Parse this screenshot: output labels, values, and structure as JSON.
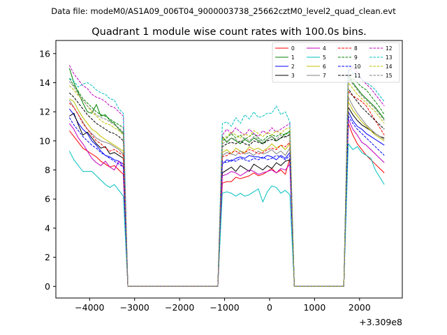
{
  "figure": {
    "suptitle": "Data file: modeM0/AS1A09_006T04_9000003738_25662cztM0_level2_quad_clean.evt"
  },
  "chart_data": {
    "type": "line",
    "title": "Quadrant 1 module wise count rates with 100.0s bins.",
    "xlabel": "",
    "ylabel": "",
    "x_offset_label": "+3.309e8",
    "xlim": [
      -4750,
      2950
    ],
    "ylim": [
      -0.8,
      16.9
    ],
    "xticks": [
      -4000,
      -3000,
      -2000,
      -1000,
      0,
      1000,
      2000
    ],
    "xtick_labels": [
      "−4000",
      "−3000",
      "−2000",
      "−1000",
      "0",
      "1000",
      "2000"
    ],
    "yticks": [
      0,
      2,
      4,
      6,
      8,
      10,
      12,
      14,
      16
    ],
    "ytick_labels": [
      "0",
      "2",
      "4",
      "6",
      "8",
      "10",
      "12",
      "14",
      "16"
    ],
    "grid": false,
    "legend": {
      "placement": "top-right",
      "columns": 4
    },
    "segment_times": [
      [
        -4450,
        -4350,
        -4250,
        -4150,
        -4050,
        -3950,
        -3850,
        -3750,
        -3650,
        -3550,
        -3450,
        -3350,
        -3250
      ],
      [
        -1050,
        -950,
        -850,
        -750,
        -650,
        -550,
        -450,
        -350,
        -250,
        -150,
        -50,
        50,
        150,
        250,
        350,
        450
      ],
      [
        1750,
        1850,
        1950,
        2050,
        2150,
        2250,
        2350,
        2450,
        2550
      ]
    ],
    "zero_times": [
      -3150,
      550
    ],
    "zero_until": [
      -1150,
      1650
    ],
    "series": [
      {
        "name": "0",
        "color": "#ff0000",
        "dash": "solid",
        "segments": [
          [
            10.7,
            10.3,
            9.9,
            9.5,
            9.3,
            9.1,
            8.9,
            8.6,
            8.4,
            8.2,
            8.3,
            8.0,
            7.7
          ],
          [
            7.1,
            7.2,
            7.2,
            7.5,
            7.4,
            7.5,
            7.6,
            7.8,
            7.6,
            7.7,
            7.9,
            8.1,
            7.8,
            8.0,
            7.7,
            8.8
          ],
          [
            11.2,
            10.4,
            9.8,
            9.4,
            9.0,
            8.7,
            8.4,
            8.1,
            7.8
          ]
        ]
      },
      {
        "name": "1",
        "color": "#008000",
        "dash": "solid",
        "segments": [
          [
            15.0,
            14.0,
            13.3,
            12.6,
            12.0,
            11.9,
            12.5,
            11.7,
            11.8,
            11.4,
            11.2,
            10.8,
            10.5
          ],
          [
            10.3,
            9.9,
            10.2,
            10.0,
            9.8,
            10.1,
            9.9,
            10.2,
            10.0,
            9.8,
            10.1,
            10.3,
            10.0,
            10.2,
            10.5,
            10.6
          ],
          [
            14.5,
            14.0,
            13.6,
            13.2,
            12.9,
            12.6,
            12.3,
            11.9,
            11.5
          ]
        ]
      },
      {
        "name": "2",
        "color": "#0000ff",
        "dash": "solid",
        "segments": [
          [
            12.2,
            11.8,
            11.2,
            10.8,
            10.5,
            10.0,
            9.7,
            9.3,
            9.0,
            8.9,
            8.7,
            8.6,
            8.4
          ],
          [
            8.4,
            8.7,
            8.6,
            8.8,
            8.9,
            8.8,
            9.0,
            8.9,
            8.9,
            8.8,
            9.0,
            8.9,
            8.7,
            9.0,
            8.8,
            9.2
          ],
          [
            12.0,
            11.4,
            11.0,
            10.8,
            10.5,
            10.3,
            10.1,
            9.9,
            9.7
          ]
        ]
      },
      {
        "name": "3",
        "color": "#000000",
        "dash": "solid",
        "segments": [
          [
            11.7,
            11.9,
            11.1,
            10.4,
            10.6,
            10.2,
            9.8,
            9.5,
            9.6,
            9.1,
            9.2,
            9.0,
            8.8
          ],
          [
            7.8,
            8.0,
            8.2,
            7.9,
            8.3,
            8.1,
            7.9,
            8.4,
            8.2,
            8.0,
            8.3,
            8.1,
            8.5,
            8.3,
            8.6,
            8.7
          ],
          [
            12.3,
            11.8,
            11.4,
            11.1,
            10.9,
            10.7,
            10.5,
            10.3,
            10.2
          ]
        ]
      },
      {
        "name": "4",
        "color": "#bf00bf",
        "dash": "solid",
        "segments": [
          [
            11.2,
            10.8,
            10.2,
            9.8,
            9.3,
            8.8,
            8.5,
            8.3,
            8.6,
            8.2,
            8.0,
            8.6,
            8.2
          ],
          [
            7.6,
            7.7,
            7.9,
            7.8,
            7.6,
            7.8,
            8.0,
            7.9,
            7.7,
            7.8,
            7.9,
            8.0,
            7.8,
            8.1,
            8.0,
            8.4
          ],
          [
            11.5,
            10.8,
            10.4,
            9.9,
            9.7,
            9.4,
            9.1,
            8.8,
            8.5
          ]
        ]
      },
      {
        "name": "5",
        "color": "#00bfbf",
        "dash": "solid",
        "segments": [
          [
            9.3,
            8.7,
            8.3,
            7.9,
            7.9,
            7.9,
            7.6,
            7.3,
            7.0,
            6.8,
            7.0,
            6.6,
            6.2
          ],
          [
            6.4,
            6.5,
            6.4,
            6.2,
            6.4,
            6.2,
            6.3,
            6.5,
            6.7,
            5.8,
            6.5,
            6.9,
            6.8,
            6.4,
            6.6,
            6.3
          ],
          [
            9.8,
            9.4,
            9.6,
            9.2,
            9.0,
            8.8,
            8.0,
            7.5,
            7.0
          ]
        ]
      },
      {
        "name": "6",
        "color": "#bfbf00",
        "dash": "solid",
        "segments": [
          [
            12.9,
            12.7,
            12.1,
            11.6,
            11.2,
            10.8,
            10.6,
            10.3,
            10.1,
            9.9,
            9.7,
            9.5,
            9.3
          ],
          [
            9.2,
            9.4,
            9.1,
            9.5,
            9.3,
            9.2,
            9.6,
            9.4,
            9.5,
            9.3,
            9.5,
            9.8,
            9.5,
            9.7,
            9.4,
            9.8
          ],
          [
            12.7,
            12.1,
            11.7,
            11.3,
            11.0,
            10.7,
            10.4,
            10.2,
            10.0
          ]
        ]
      },
      {
        "name": "7",
        "color": "#808080",
        "dash": "solid",
        "segments": [
          [
            12.8,
            12.3,
            11.8,
            11.3,
            10.8,
            10.5,
            10.2,
            10.0,
            9.9,
            9.8,
            9.6,
            9.4,
            9.1
          ],
          [
            9.0,
            9.2,
            9.1,
            9.0,
            9.3,
            9.1,
            9.2,
            9.0,
            9.3,
            9.1,
            9.2,
            9.4,
            9.1,
            9.3,
            9.0,
            9.5
          ],
          [
            13.0,
            12.4,
            11.9,
            11.5,
            11.1,
            10.8,
            10.5,
            10.3,
            10.1
          ]
        ]
      },
      {
        "name": "8",
        "color": "#ff0000",
        "dash": "dashed",
        "segments": [
          [
            12.6,
            12.3,
            11.8,
            11.2,
            10.8,
            10.4,
            10.0,
            9.8,
            9.5,
            9.3,
            9.4,
            9.2,
            9.0
          ],
          [
            8.9,
            9.0,
            9.2,
            9.3,
            9.1,
            9.2,
            9.4,
            9.3,
            9.1,
            9.2,
            9.4,
            9.5,
            9.4,
            9.7,
            9.6,
            9.9
          ],
          [
            13.4,
            13.1,
            12.9,
            12.7,
            12.4,
            11.9,
            11.4,
            10.9,
            10.4
          ]
        ]
      },
      {
        "name": "9",
        "color": "#008000",
        "dash": "dashed",
        "segments": [
          [
            14.3,
            13.8,
            13.4,
            12.9,
            12.6,
            12.3,
            12.0,
            11.8,
            11.7,
            11.5,
            11.3,
            11.1,
            10.9
          ],
          [
            10.0,
            10.2,
            10.5,
            10.2,
            10.4,
            10.1,
            10.3,
            10.5,
            10.2,
            10.0,
            10.3,
            10.4,
            10.3,
            10.5,
            10.4,
            10.7
          ],
          [
            14.1,
            14.3,
            14.0,
            13.7,
            13.5,
            13.1,
            12.7,
            12.3,
            11.8
          ]
        ]
      },
      {
        "name": "10",
        "color": "#0000ff",
        "dash": "dashed",
        "segments": [
          [
            11.6,
            11.1,
            10.7,
            10.3,
            10.0,
            9.7,
            9.5,
            9.2,
            9.0,
            8.8,
            8.6,
            8.4,
            8.2
          ],
          [
            8.6,
            8.5,
            8.7,
            8.6,
            8.8,
            8.7,
            8.6,
            8.8,
            8.7,
            8.9,
            8.7,
            8.8,
            9.0,
            8.9,
            8.7,
            9.0
          ],
          [
            11.7,
            11.2,
            10.8,
            10.5,
            10.2,
            9.9,
            9.6,
            9.3,
            9.0
          ]
        ]
      },
      {
        "name": "11",
        "color": "#000000",
        "dash": "dashed",
        "segments": [
          [
            13.3,
            13.0,
            12.6,
            12.2,
            11.8,
            11.5,
            11.2,
            11.0,
            10.8,
            10.6,
            10.5,
            10.3,
            10.0
          ],
          [
            9.6,
            9.8,
            9.9,
            9.8,
            10.0,
            9.8,
            9.7,
            10.0,
            9.9,
            9.8,
            10.0,
            10.1,
            10.0,
            10.2,
            10.3,
            10.4
          ],
          [
            13.6,
            13.1,
            12.7,
            12.3,
            12.0,
            11.7,
            11.4,
            11.1,
            10.8
          ]
        ]
      },
      {
        "name": "12",
        "color": "#bf00bf",
        "dash": "dashed",
        "segments": [
          [
            15.2,
            14.6,
            14.2,
            13.8,
            13.6,
            13.2,
            13.0,
            12.9,
            12.7,
            12.4,
            12.3,
            12.0,
            11.7
          ],
          [
            10.4,
            10.8,
            10.5,
            10.9,
            10.6,
            10.4,
            10.8,
            10.5,
            10.3,
            10.7,
            10.5,
            10.9,
            10.6,
            10.8,
            11.0,
            11.2
          ],
          [
            14.8,
            15.1,
            14.7,
            14.2,
            13.9,
            13.6,
            13.2,
            12.8,
            12.4
          ]
        ]
      },
      {
        "name": "13",
        "color": "#00bfbf",
        "dash": "dashed",
        "segments": [
          [
            14.3,
            14.1,
            13.7,
            13.9,
            14.0,
            13.8,
            13.5,
            13.3,
            13.2,
            12.9,
            12.8,
            12.2,
            11.9
          ],
          [
            11.2,
            11.3,
            11.0,
            11.6,
            11.2,
            11.8,
            11.5,
            12.0,
            11.6,
            11.7,
            11.9,
            11.9,
            12.4,
            11.8,
            12.0,
            11.3
          ],
          [
            15.2,
            14.7,
            14.4,
            14.2,
            14.0,
            13.8,
            13.5,
            13.1,
            12.7
          ]
        ]
      },
      {
        "name": "14",
        "color": "#bfbf00",
        "dash": "dashed",
        "segments": [
          [
            13.8,
            13.5,
            13.1,
            12.8,
            12.4,
            12.0,
            11.7,
            11.4,
            11.2,
            11.1,
            10.9,
            10.7,
            10.4
          ],
          [
            10.1,
            10.3,
            10.6,
            10.4,
            10.2,
            10.5,
            10.3,
            10.7,
            10.5,
            10.3,
            10.6,
            10.4,
            10.7,
            10.5,
            10.8,
            10.9
          ],
          [
            14.0,
            13.6,
            13.2,
            12.9,
            12.6,
            12.3,
            12.0,
            11.6,
            11.2
          ]
        ]
      },
      {
        "name": "15",
        "color": "#808080",
        "dash": "dashed",
        "segments": [
          [
            14.1,
            13.7,
            13.2,
            12.8,
            12.4,
            12.1,
            11.8,
            11.6,
            11.5,
            11.3,
            11.1,
            10.9,
            10.6
          ],
          [
            9.8,
            10.0,
            10.2,
            10.1,
            9.9,
            10.2,
            10.0,
            10.3,
            10.1,
            9.9,
            10.1,
            10.3,
            10.1,
            10.4,
            10.2,
            10.5
          ],
          [
            14.3,
            13.9,
            13.5,
            13.1,
            12.8,
            12.5,
            12.2,
            11.8,
            11.4
          ]
        ]
      }
    ]
  }
}
